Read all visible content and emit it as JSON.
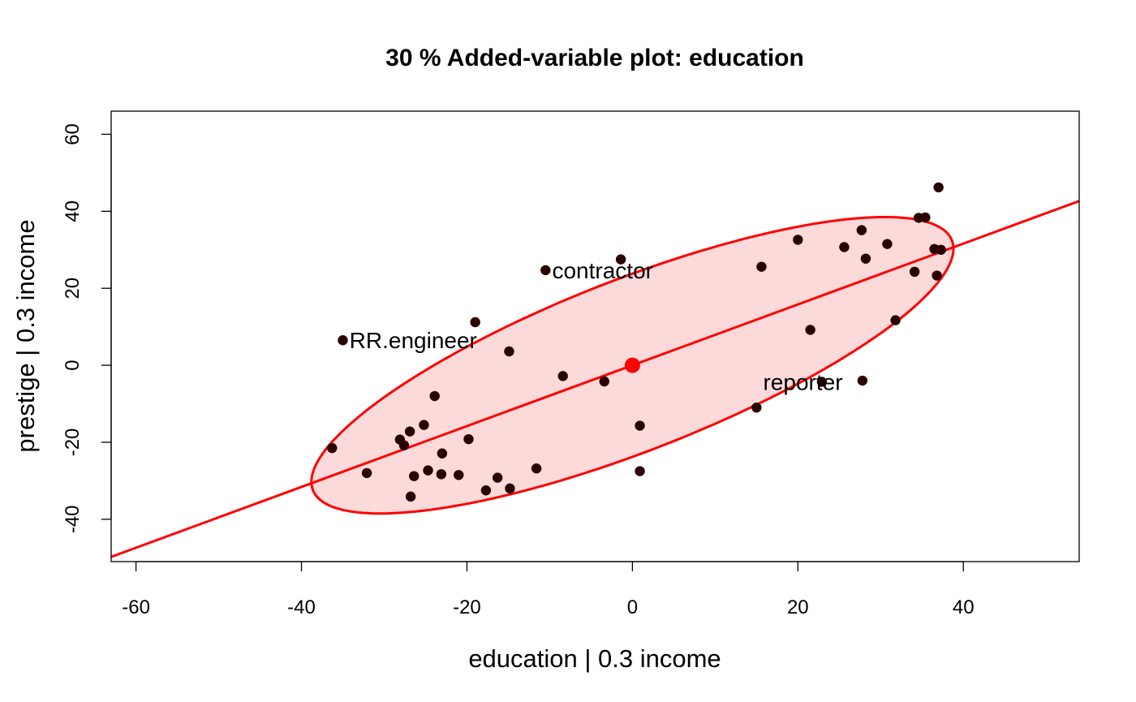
{
  "chart_data": {
    "type": "scatter",
    "title": "30 % Added-variable plot: education",
    "xlabel": "education |  0.3 income",
    "ylabel": "prestige |  0.3 income",
    "xlim": [
      -63,
      54
    ],
    "ylim": [
      -51,
      66
    ],
    "xticks": [
      -60,
      -40,
      -20,
      0,
      20,
      40
    ],
    "yticks": [
      -40,
      -20,
      0,
      20,
      40,
      60
    ],
    "grid": false,
    "colors": {
      "points": "#2a0000",
      "line": "#ff0000",
      "ellipse_fill": "#fddada",
      "ellipse_stroke": "#ff0000",
      "center": "#ff0000"
    },
    "regression_line": {
      "intercept": 0,
      "slope": 0.79
    },
    "ellipse": {
      "center": [
        0,
        0
      ],
      "x_extent": [
        -38.8,
        38.8
      ],
      "y_extent": [
        -38.5,
        38.5
      ],
      "slope_through_extremes": 0.78
    },
    "center_point": {
      "x": 0,
      "y": 0
    },
    "points": [
      {
        "x": -36.3,
        "y": -21.5
      },
      {
        "x": -35.0,
        "y": 6.5
      },
      {
        "x": -32.1,
        "y": -28.0
      },
      {
        "x": -28.1,
        "y": -19.3
      },
      {
        "x": -27.6,
        "y": -20.8
      },
      {
        "x": -26.9,
        "y": -17.2
      },
      {
        "x": -26.4,
        "y": -28.8
      },
      {
        "x": -26.8,
        "y": -34.1
      },
      {
        "x": -25.2,
        "y": -15.5
      },
      {
        "x": -24.7,
        "y": -27.3
      },
      {
        "x": -23.9,
        "y": -8.0
      },
      {
        "x": -23.1,
        "y": -28.3
      },
      {
        "x": -23.0,
        "y": -22.9
      },
      {
        "x": -21.0,
        "y": -28.5
      },
      {
        "x": -19.8,
        "y": -19.2
      },
      {
        "x": -19.0,
        "y": 11.2
      },
      {
        "x": -17.7,
        "y": -32.5
      },
      {
        "x": -16.3,
        "y": -29.2
      },
      {
        "x": -14.8,
        "y": -32.0
      },
      {
        "x": -14.9,
        "y": 3.6
      },
      {
        "x": -11.6,
        "y": -26.8
      },
      {
        "x": -10.5,
        "y": 24.7
      },
      {
        "x": -8.4,
        "y": -2.8
      },
      {
        "x": -3.4,
        "y": -4.2
      },
      {
        "x": -1.4,
        "y": 27.5
      },
      {
        "x": 0.9,
        "y": -15.7
      },
      {
        "x": 0.9,
        "y": -27.5
      },
      {
        "x": 15.0,
        "y": -11.0
      },
      {
        "x": 15.6,
        "y": 25.6
      },
      {
        "x": 20.0,
        "y": 32.6
      },
      {
        "x": 21.5,
        "y": 9.2
      },
      {
        "x": 22.9,
        "y": -4.3
      },
      {
        "x": 25.6,
        "y": 30.7
      },
      {
        "x": 27.7,
        "y": 35.1
      },
      {
        "x": 27.8,
        "y": -4.0
      },
      {
        "x": 28.2,
        "y": 27.7
      },
      {
        "x": 30.8,
        "y": 31.5
      },
      {
        "x": 31.8,
        "y": 11.7
      },
      {
        "x": 34.1,
        "y": 24.3
      },
      {
        "x": 34.6,
        "y": 38.3
      },
      {
        "x": 35.4,
        "y": 38.4
      },
      {
        "x": 36.5,
        "y": 30.2
      },
      {
        "x": 36.8,
        "y": 23.3
      },
      {
        "x": 37.0,
        "y": 46.2
      },
      {
        "x": 37.3,
        "y": 30.0
      }
    ],
    "annotations": [
      {
        "text": "contractor",
        "x": -9.7,
        "y": 24.7
      },
      {
        "text": "RR.engineer",
        "x": -34.2,
        "y": 6.5
      },
      {
        "text": "reporter",
        "x": 15.8,
        "y": -4.3
      }
    ]
  }
}
